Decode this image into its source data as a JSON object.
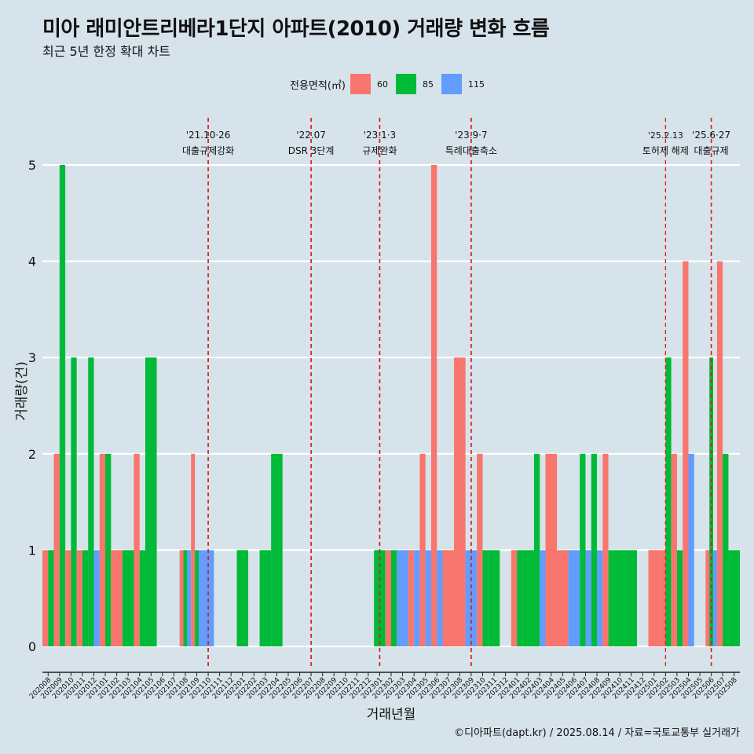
{
  "title": "미아 래미안트리베라1단지 아파트(2010) 거래량 변화 흐름",
  "subtitle": "최근 5년 한정 확대 차트",
  "caption": "©디아파트(dapt.kr) / 2025.08.14 / 자료=국토교통부 실거래가",
  "legend": {
    "title": "전용면적(㎡)",
    "items": [
      {
        "label": "60",
        "color": "#f8766d"
      },
      {
        "label": "85",
        "color": "#00ba38"
      },
      {
        "label": "115",
        "color": "#619cff"
      }
    ]
  },
  "chart_data": {
    "type": "bar",
    "xlabel": "거래년월",
    "ylabel": "거래량(건)",
    "ylim": [
      0,
      5
    ],
    "yticks": [
      0,
      1,
      2,
      3,
      4,
      5
    ],
    "grid": true,
    "legend_position": "top",
    "categories": [
      "202008",
      "202009",
      "202010",
      "202011",
      "202012",
      "202101",
      "202102",
      "202103",
      "202104",
      "202105",
      "202106",
      "202107",
      "202108",
      "202109",
      "202110",
      "202111",
      "202112",
      "202201",
      "202202",
      "202203",
      "202204",
      "202205",
      "202206",
      "202207",
      "202208",
      "202209",
      "202210",
      "202211",
      "202212",
      "202301",
      "202302",
      "202303",
      "202304",
      "202305",
      "202306",
      "202307",
      "202308",
      "202309",
      "202310",
      "202311",
      "202312",
      "202401",
      "202402",
      "202403",
      "202404",
      "202405",
      "202406",
      "202407",
      "202408",
      "202409",
      "202410",
      "202411",
      "202412",
      "202501",
      "202502",
      "202503",
      "202504",
      "202505",
      "202506",
      "202507",
      "202508"
    ],
    "series": [
      {
        "name": "60",
        "color": "#f8766d",
        "values": [
          1,
          2,
          1,
          1,
          0,
          2,
          1,
          0,
          2,
          0,
          0,
          0,
          1,
          2,
          0,
          0,
          0,
          0,
          0,
          0,
          0,
          0,
          0,
          0,
          0,
          0,
          0,
          0,
          0,
          0,
          1,
          0,
          1,
          2,
          5,
          1,
          3,
          0,
          2,
          0,
          0,
          1,
          0,
          0,
          2,
          1,
          0,
          0,
          0,
          2,
          0,
          0,
          0,
          1,
          1,
          2,
          4,
          0,
          1,
          4,
          0
        ]
      },
      {
        "name": "85",
        "color": "#00ba38",
        "values": [
          1,
          5,
          3,
          1,
          3,
          2,
          0,
          1,
          1,
          3,
          0,
          0,
          1,
          1,
          0,
          0,
          0,
          1,
          0,
          1,
          2,
          0,
          0,
          0,
          0,
          0,
          0,
          0,
          0,
          1,
          1,
          0,
          0,
          0,
          0,
          0,
          0,
          0,
          1,
          1,
          0,
          1,
          1,
          2,
          0,
          0,
          0,
          2,
          2,
          1,
          1,
          1,
          0,
          0,
          3,
          1,
          0,
          0,
          3,
          2,
          1
        ]
      },
      {
        "name": "115",
        "color": "#619cff",
        "values": [
          0,
          0,
          0,
          0,
          1,
          0,
          0,
          0,
          0,
          0,
          0,
          0,
          1,
          1,
          1,
          0,
          0,
          0,
          0,
          0,
          0,
          0,
          0,
          0,
          0,
          0,
          0,
          0,
          0,
          0,
          0,
          1,
          1,
          1,
          1,
          0,
          0,
          1,
          0,
          0,
          0,
          0,
          0,
          1,
          0,
          0,
          1,
          1,
          1,
          0,
          0,
          0,
          0,
          0,
          0,
          0,
          2,
          0,
          1,
          0,
          0
        ]
      }
    ],
    "annotations": [
      {
        "x": "202110",
        "date": "'21.10·26",
        "label": "대출규제강화"
      },
      {
        "x": "202207",
        "date": "'22.07",
        "label": "DSR 3단계"
      },
      {
        "x": "202301",
        "date": "'23.1·3",
        "label": "규제완화"
      },
      {
        "x": "202309",
        "date": "'23.9·7",
        "label": "특례대출축소"
      },
      {
        "x": "202502",
        "date": "'25.2.13",
        "label": "토허제 해제"
      },
      {
        "x": "202506",
        "date": "'25.6·27",
        "label": "대출규제"
      }
    ]
  }
}
